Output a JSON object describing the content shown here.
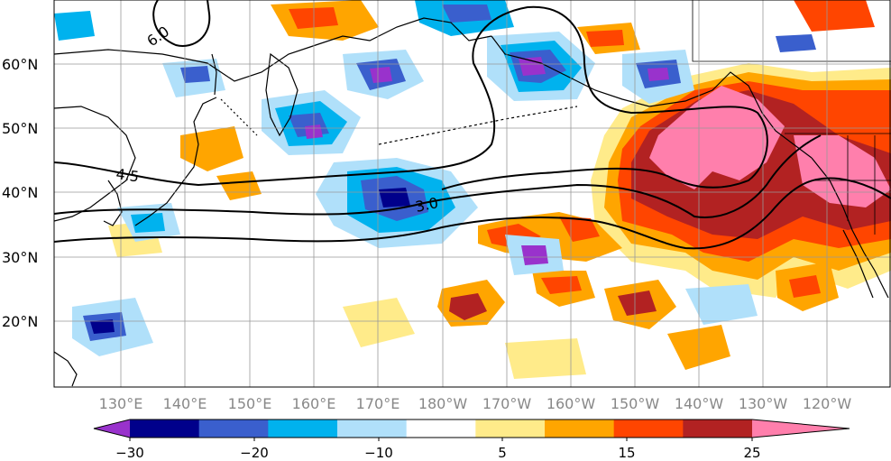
{
  "map": {
    "lat_ticks": [
      "60°N",
      "50°N",
      "40°N",
      "30°N",
      "20°N"
    ],
    "lon_ticks": [
      "130°E",
      "140°E",
      "150°E",
      "160°E",
      "170°E",
      "180°W",
      "170°W",
      "160°W",
      "150°W",
      "140°W",
      "130°W",
      "120°W"
    ],
    "contour_labels": [
      "6.0",
      "4.5",
      "3.0"
    ],
    "line_color": "#000000",
    "grid_color": "#999999",
    "tick_color_lon": "#888888"
  },
  "colorbar": {
    "labels": [
      "−30",
      "−20",
      "−10",
      "5",
      "15",
      "25"
    ],
    "colors": [
      "#9932cc",
      "#00008b",
      "#3a5fcd",
      "#00b2ee",
      "#b0e0fa",
      "#ffffff",
      "#ffeb8a",
      "#ffa500",
      "#ff4500",
      "#b22222",
      "#ff7fac"
    ]
  }
}
